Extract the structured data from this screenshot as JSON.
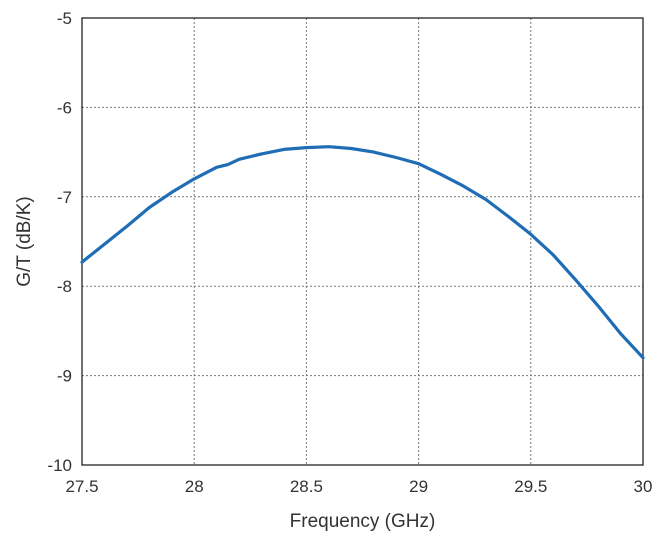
{
  "chart_data": {
    "type": "line",
    "title": "",
    "xlabel": "Frequency (GHz)",
    "ylabel": "G/T (dB/K)",
    "xlim": [
      27.5,
      30
    ],
    "ylim": [
      -10,
      -5
    ],
    "xticks": [
      "27.5",
      "28",
      "28.5",
      "29",
      "29.5",
      "30"
    ],
    "yticks": [
      "-5",
      "-6",
      "-7",
      "-8",
      "-9",
      "-10"
    ],
    "grid": true,
    "legend": "none",
    "series": [
      {
        "color": "#1f6db5",
        "x": [
          27.5,
          27.6,
          27.7,
          27.8,
          27.9,
          28.0,
          28.1,
          28.15,
          28.2,
          28.3,
          28.4,
          28.5,
          28.6,
          28.7,
          28.8,
          28.9,
          29.0,
          29.1,
          29.2,
          29.3,
          29.4,
          29.5,
          29.6,
          29.7,
          29.8,
          29.9,
          30.0
        ],
        "y": [
          -7.73,
          -7.53,
          -7.33,
          -7.12,
          -6.95,
          -6.8,
          -6.67,
          -6.64,
          -6.58,
          -6.52,
          -6.47,
          -6.45,
          -6.44,
          -6.46,
          -6.5,
          -6.56,
          -6.63,
          -6.75,
          -6.88,
          -7.03,
          -7.22,
          -7.42,
          -7.65,
          -7.93,
          -8.22,
          -8.53,
          -8.8
        ]
      }
    ]
  }
}
